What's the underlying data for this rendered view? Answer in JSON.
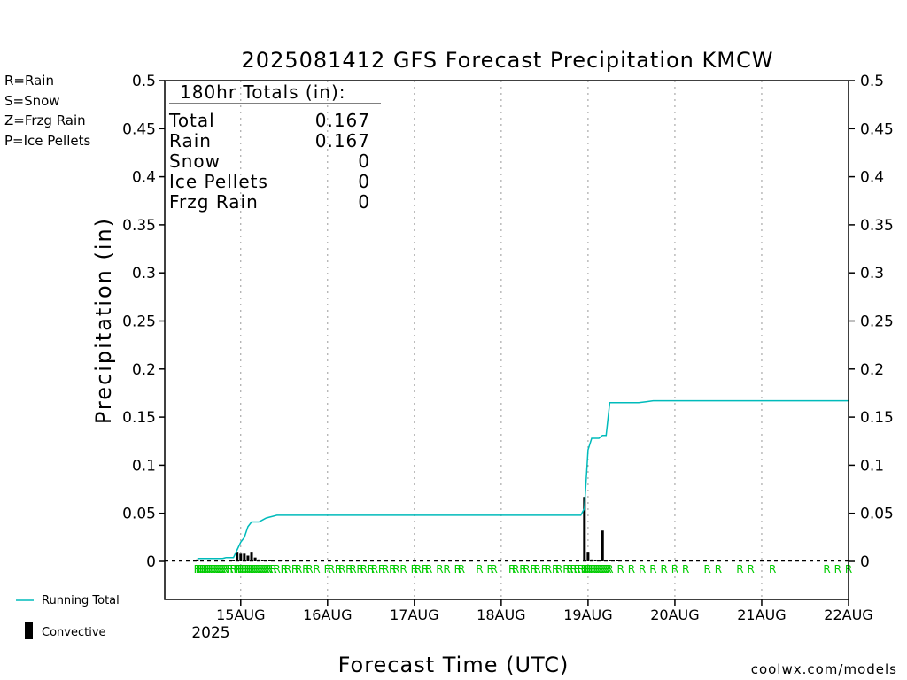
{
  "colors": {
    "rain": "#00cc00",
    "snow": "#3333ff",
    "frzg_rain": "#ff8c33",
    "ice_pellets": "#ee1188",
    "running_total": "#00bbbb",
    "convective": "#000000",
    "watermark": "#dd0000"
  },
  "legend_types": {
    "rain": "R=Rain",
    "snow": "S=Snow",
    "frzg_rain": "Z=Frzg Rain",
    "ice_pellets": "P=Ice Pellets"
  },
  "legend_series": {
    "running_total": "Running Total",
    "convective": "Convective"
  },
  "totals": {
    "header": "180hr Totals (in):",
    "rows": [
      {
        "label": "Total",
        "value": "0.167"
      },
      {
        "label": "Rain",
        "value": "0.167"
      },
      {
        "label": "Snow",
        "value": "0"
      },
      {
        "label": "Ice Pellets",
        "value": "0"
      },
      {
        "label": "Frzg Rain",
        "value": "0"
      }
    ]
  },
  "watermark": "coolwx.com/models",
  "chart_data": {
    "type": "line",
    "title": "2025081412 GFS Forecast Precipitation KMCW",
    "xlabel": "Forecast Time (UTC)",
    "ylabel": "Precipitation (in)",
    "ylim": [
      0,
      0.5
    ],
    "y_ticks": [
      0,
      0.05,
      0.1,
      0.15,
      0.2,
      0.25,
      0.3,
      0.35,
      0.4,
      0.45,
      0.5
    ],
    "y_tick_labels": [
      "0",
      "0.05",
      "0.1",
      "0.15",
      "0.2",
      "0.25",
      "0.3",
      "0.35",
      "0.4",
      "0.45",
      "0.5"
    ],
    "xlim_hours": [
      -9,
      180
    ],
    "x_ticks_hours": [
      12,
      36,
      60,
      84,
      108,
      132,
      156,
      180
    ],
    "x_tick_labels": [
      "15AUG",
      "16AUG",
      "17AUG",
      "18AUG",
      "19AUG",
      "20AUG",
      "21AUG",
      "22AUG"
    ],
    "x_year_label": "2025",
    "grid": "vertical-dotted",
    "running_total": {
      "name": "Running Total",
      "x_hours": [
        0,
        1,
        2,
        3,
        4,
        5,
        6,
        7,
        8,
        9,
        10,
        11,
        12,
        13,
        14,
        15,
        16,
        17,
        18,
        19,
        20,
        21,
        22,
        23,
        24,
        25,
        26,
        27,
        28,
        30,
        32,
        34,
        36,
        60,
        84,
        103,
        106,
        107,
        108,
        109,
        110,
        111,
        112,
        113,
        114,
        115,
        116,
        117,
        118,
        119,
        120,
        121,
        122,
        124,
        126,
        128,
        130,
        132,
        156,
        180
      ],
      "y": [
        0.003,
        0.003,
        0.003,
        0.003,
        0.003,
        0.003,
        0.003,
        0.003,
        0.004,
        0.004,
        0.004,
        0.012,
        0.02,
        0.025,
        0.036,
        0.041,
        0.041,
        0.041,
        0.043,
        0.045,
        0.046,
        0.047,
        0.048,
        0.048,
        0.048,
        0.048,
        0.048,
        0.048,
        0.048,
        0.048,
        0.048,
        0.048,
        0.048,
        0.048,
        0.048,
        0.048,
        0.048,
        0.055,
        0.116,
        0.128,
        0.128,
        0.128,
        0.131,
        0.131,
        0.165,
        0.165,
        0.165,
        0.165,
        0.165,
        0.165,
        0.165,
        0.165,
        0.165,
        0.166,
        0.167,
        0.167,
        0.167,
        0.167,
        0.167,
        0.167
      ]
    },
    "convective": {
      "name": "Convective",
      "x_hours": [
        0,
        10,
        11,
        12,
        13,
        14,
        15,
        16,
        17,
        18,
        19,
        20,
        21,
        22,
        23,
        107,
        108,
        109,
        110,
        111,
        112,
        113,
        114,
        115,
        116
      ],
      "y": [
        0.002,
        0.001,
        0.01,
        0.008,
        0.008,
        0.006,
        0.01,
        0.004,
        0.002,
        0.001,
        0.0,
        0.001,
        0.001,
        0.0,
        0.001,
        0.067,
        0.01,
        0.002,
        0.001,
        0.001,
        0.032,
        0.001,
        0.001,
        0.001,
        0.001
      ]
    },
    "precip_type_markers": {
      "symbol": "R",
      "x_hours": [
        0,
        0.5,
        1,
        1.5,
        2,
        2.5,
        3,
        3.5,
        4,
        4.5,
        5,
        5.5,
        6,
        6.5,
        7,
        7.5,
        8,
        9,
        10,
        11,
        11.5,
        12,
        12.5,
        13,
        13.5,
        14,
        14.5,
        15,
        15.5,
        16,
        16.5,
        17,
        17.5,
        18,
        18.5,
        19,
        19.5,
        20,
        21,
        22,
        24,
        25,
        27,
        28,
        30,
        31,
        33,
        36,
        37,
        39,
        40,
        42,
        43,
        45,
        46,
        48,
        49,
        51,
        52,
        54,
        55,
        57,
        60,
        61,
        63,
        64,
        67,
        69,
        72,
        73,
        78,
        81,
        82,
        87,
        88,
        90,
        91,
        93,
        94,
        96,
        97,
        99,
        100,
        102,
        103,
        104,
        105,
        106,
        107,
        107.5,
        108,
        108.5,
        109,
        109.5,
        110,
        110.5,
        111,
        111.5,
        112,
        112.5,
        113,
        113.5,
        114,
        117,
        120,
        123,
        126,
        129,
        132,
        135,
        141,
        144,
        150,
        153,
        159,
        174,
        177,
        180
      ]
    }
  }
}
